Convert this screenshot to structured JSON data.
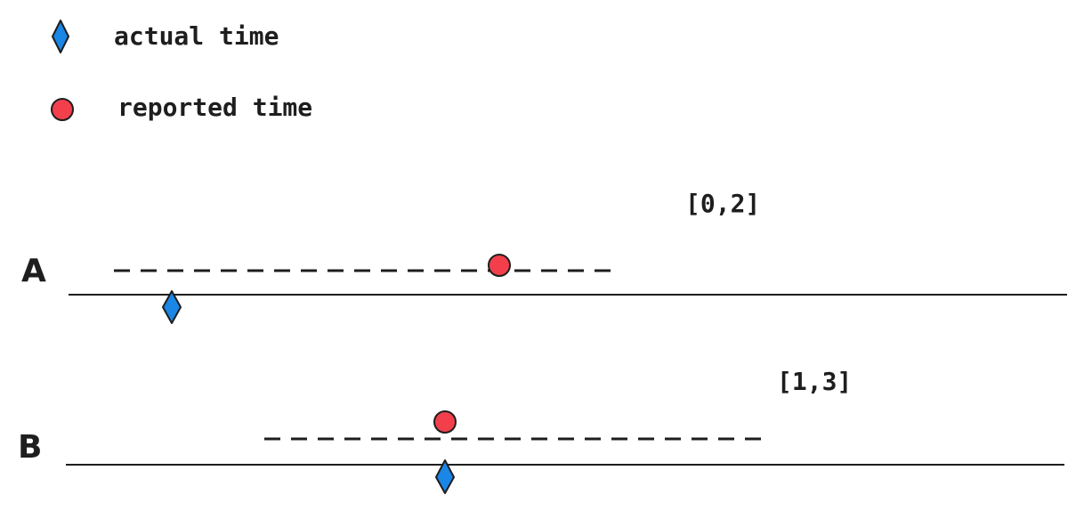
{
  "colors": {
    "actual": "#1a86e6",
    "reported": "#f23f4b",
    "ink": "#1e1e1e"
  },
  "legend": {
    "actual_label": "actual time",
    "actual_icon": "blue-diamond-icon",
    "reported_label": "reported time",
    "reported_icon": "red-circle-icon"
  },
  "rows": {
    "a": {
      "label": "A",
      "interval": "[0,2]"
    },
    "b": {
      "label": "B",
      "interval": "[1,3]"
    }
  }
}
